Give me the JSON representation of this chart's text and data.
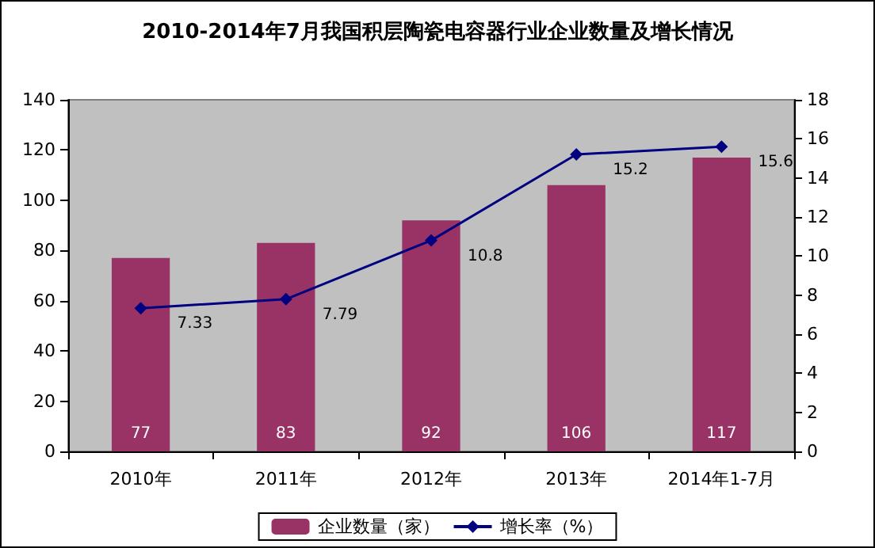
{
  "chart_data": {
    "type": "bar",
    "title": "2010-2014年7月我国积层陶瓷电容器行业企业数量及增长情况",
    "categories": [
      "2010年",
      "2011年",
      "2012年",
      "2013年",
      "2014年1-7月"
    ],
    "series": [
      {
        "name": "企业数量（家）",
        "color": "#993366",
        "values": [
          77,
          83,
          92,
          106,
          117
        ]
      },
      {
        "name": "增长率（%）",
        "type": "line",
        "axis": "y2",
        "color": "#000080",
        "values": [
          7.33,
          7.79,
          10.8,
          15.2,
          15.6
        ],
        "marker": "diamond",
        "line_style": "solid"
      }
    ],
    "ylim": [
      0,
      140
    ],
    "yticks": [
      0,
      20,
      40,
      60,
      80,
      100,
      120,
      140
    ],
    "y2lim": [
      0,
      18
    ],
    "y2ticks": [
      0,
      2,
      4,
      6,
      8,
      10,
      12,
      14,
      16,
      18
    ],
    "data_labels": true,
    "grid": false,
    "legend": "bottom"
  }
}
